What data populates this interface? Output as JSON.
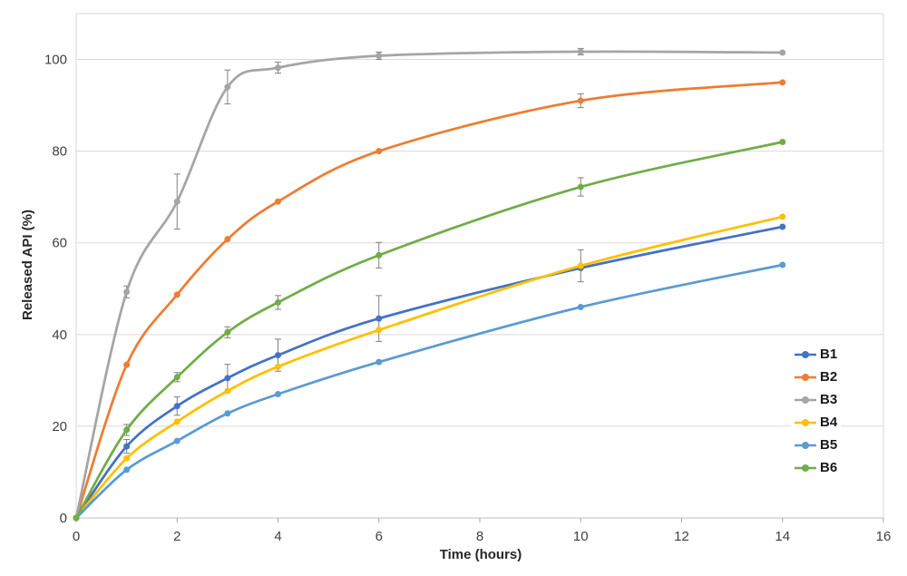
{
  "chart_data": {
    "type": "line",
    "title": "",
    "xlabel": "Time (hours)",
    "ylabel": "Released API (%)",
    "x": [
      0,
      1,
      2,
      3,
      4,
      6,
      10,
      14
    ],
    "xlim": [
      0,
      16
    ],
    "ylim": [
      0,
      110
    ],
    "x_ticks": [
      0,
      2,
      4,
      6,
      8,
      10,
      12,
      14,
      16
    ],
    "y_ticks": [
      0,
      20,
      40,
      60,
      80,
      100
    ],
    "grid": "horizontal",
    "smooth": true,
    "legend_position": "right",
    "marker": "circle",
    "error_bar_color": "#808080",
    "grid_color": "#d9d9d9",
    "axis_color": "#bfbfbf",
    "tick_color": "#a6a6a6",
    "series": [
      {
        "name": "B1",
        "color": "#4472C4",
        "values": [
          0,
          15.6,
          24.4,
          30.5,
          35.5,
          43.5,
          54.5,
          63.5
        ],
        "errors": [
          0,
          1.5,
          2,
          3,
          3.5,
          5,
          0,
          0
        ]
      },
      {
        "name": "B2",
        "color": "#ED7D31",
        "values": [
          0,
          33.4,
          48.7,
          60.8,
          69,
          80,
          91,
          95
        ],
        "errors": [
          0,
          0,
          0,
          0,
          0,
          0,
          1.5,
          0
        ]
      },
      {
        "name": "B3",
        "color": "#A5A5A5",
        "values": [
          0,
          49.3,
          69,
          94,
          98.2,
          100.8,
          101.7,
          101.5
        ],
        "errors": [
          0,
          1.3,
          6,
          3.7,
          1.2,
          0.8,
          0.7,
          0
        ]
      },
      {
        "name": "B4",
        "color": "#FFC000",
        "values": [
          0,
          13,
          21,
          27.7,
          33,
          41,
          55,
          65.7
        ],
        "errors": [
          0,
          0,
          0,
          0,
          0,
          0,
          3.5,
          0
        ]
      },
      {
        "name": "B5",
        "color": "#5B9BD5",
        "values": [
          0,
          10.5,
          16.8,
          22.8,
          27,
          34,
          46,
          55.2
        ],
        "errors": [
          0,
          0,
          0,
          0,
          0,
          0,
          0,
          0
        ]
      },
      {
        "name": "B6",
        "color": "#70AD47",
        "values": [
          0,
          19.2,
          30.7,
          40.5,
          47,
          57.3,
          72.2,
          82
        ],
        "errors": [
          0,
          1.2,
          1,
          1.2,
          1.5,
          2.8,
          2,
          0
        ]
      }
    ]
  }
}
